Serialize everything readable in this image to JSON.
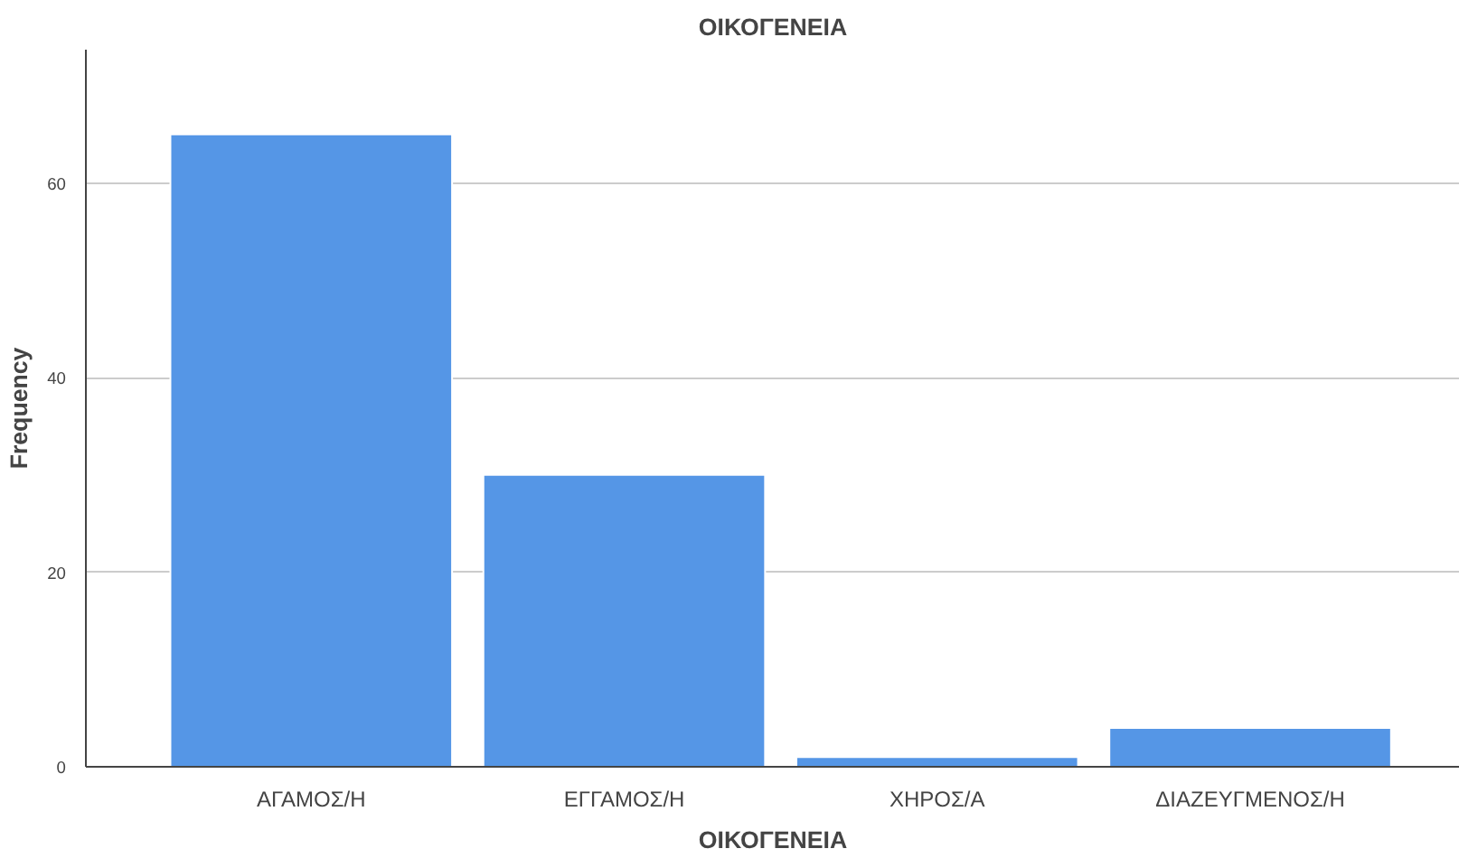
{
  "chart_data": {
    "type": "bar",
    "title": "ΟΙΚΟΓΕΝΕΙΑ",
    "xlabel": "ΟΙΚΟΓΕΝΕΙΑ",
    "ylabel": "Frequency",
    "categories": [
      "ΑΓΑΜΟΣ/Η",
      "ΕΓΓΑΜΟΣ/Η",
      "ΧΗΡΟΣ/Α",
      "ΔΙΑΖΕΥΓΜΕΝΟΣ/Η"
    ],
    "values": [
      65,
      30,
      1,
      4
    ],
    "color": "#5596e6",
    "ylim": [
      0,
      73.7
    ],
    "yticks": [
      0,
      20,
      40,
      60
    ],
    "grid": "y"
  }
}
